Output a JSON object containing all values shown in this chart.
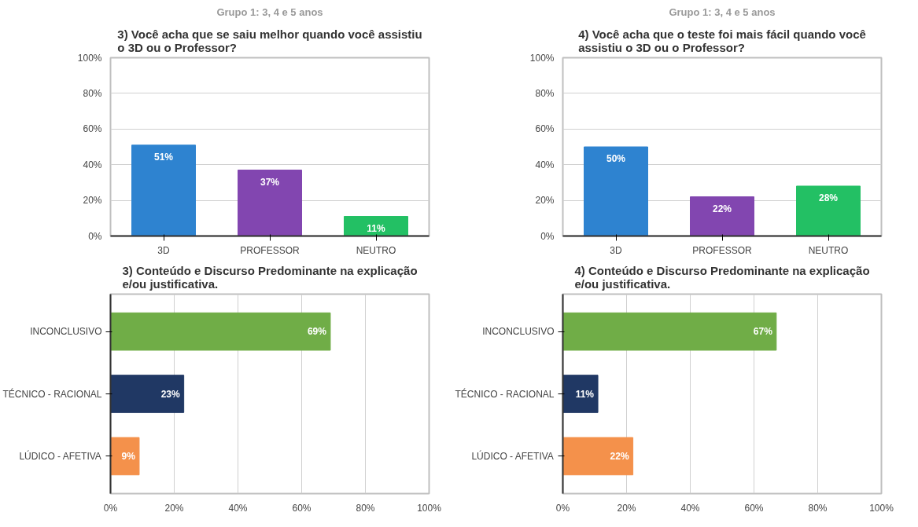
{
  "chart_data": [
    {
      "type": "bar",
      "subtitle": "Grupo 1: 3, 4 e 5 anos",
      "title": "3) Você acha que se saiu melhor quando você assistiu o 3D ou o Professor?",
      "categories": [
        "3D",
        "PROFESSOR",
        "NEUTRO"
      ],
      "values": [
        51,
        37,
        11
      ],
      "colors": [
        "#2e83d0",
        "#8246b0",
        "#23c064"
      ],
      "value_labels": [
        "51%",
        "37%",
        "11%"
      ],
      "ylim": [
        0,
        100
      ],
      "yticks": [
        {
          "value": 0,
          "label": "0%"
        },
        {
          "value": 20,
          "label": "20%"
        },
        {
          "value": 40,
          "label": "40%"
        },
        {
          "value": 60,
          "label": "60%"
        },
        {
          "value": 80,
          "label": "80%"
        },
        {
          "value": 100,
          "label": "100%"
        }
      ],
      "grid": "y"
    },
    {
      "type": "bar",
      "subtitle": "Grupo 1: 3, 4 e 5 anos",
      "title": "4) Você acha que o teste foi mais fácil quando você assistiu o 3D ou o Professor?",
      "categories": [
        "3D",
        "PROFESSOR",
        "NEUTRO"
      ],
      "values": [
        50,
        22,
        28
      ],
      "colors": [
        "#2e83d0",
        "#8246b0",
        "#23c064"
      ],
      "value_labels": [
        "50%",
        "22%",
        "28%"
      ],
      "ylim": [
        0,
        100
      ],
      "yticks": [
        {
          "value": 0,
          "label": "0%"
        },
        {
          "value": 20,
          "label": "20%"
        },
        {
          "value": 40,
          "label": "40%"
        },
        {
          "value": 60,
          "label": "60%"
        },
        {
          "value": 80,
          "label": "80%"
        },
        {
          "value": 100,
          "label": "100%"
        }
      ],
      "grid": "y"
    },
    {
      "type": "bar",
      "orientation": "horizontal",
      "title": "3) Conteúdo e Discurso Predominante na explicação e/ou justificativa.",
      "categories": [
        "INCONCLUSIVO",
        "TÉCNICO - RACIONAL",
        "LÚDICO - AFETIVA"
      ],
      "values": [
        69,
        23,
        9
      ],
      "colors": [
        "#70ad47",
        "#203864",
        "#f4914b"
      ],
      "value_labels": [
        "69%",
        "23%",
        "9%"
      ],
      "xlim": [
        0,
        100
      ],
      "xticks": [
        {
          "value": 0,
          "label": "0%"
        },
        {
          "value": 20,
          "label": "20%"
        },
        {
          "value": 40,
          "label": "40%"
        },
        {
          "value": 60,
          "label": "60%"
        },
        {
          "value": 80,
          "label": "80%"
        },
        {
          "value": 100,
          "label": "100%"
        }
      ],
      "grid": "x"
    },
    {
      "type": "bar",
      "orientation": "horizontal",
      "title": "4) Conteúdo e Discurso Predominante na explicação e/ou justificativa.",
      "categories": [
        "INCONCLUSIVO",
        "TÉCNICO - RACIONAL",
        "LÚDICO - AFETIVA"
      ],
      "values": [
        67,
        11,
        22
      ],
      "colors": [
        "#70ad47",
        "#203864",
        "#f4914b"
      ],
      "value_labels": [
        "67%",
        "11%",
        "22%"
      ],
      "xlim": [
        0,
        100
      ],
      "xticks": [
        {
          "value": 0,
          "label": "0%"
        },
        {
          "value": 20,
          "label": "20%"
        },
        {
          "value": 40,
          "label": "40%"
        },
        {
          "value": 60,
          "label": "60%"
        },
        {
          "value": 80,
          "label": "80%"
        },
        {
          "value": 100,
          "label": "100%"
        }
      ],
      "grid": "x"
    }
  ]
}
